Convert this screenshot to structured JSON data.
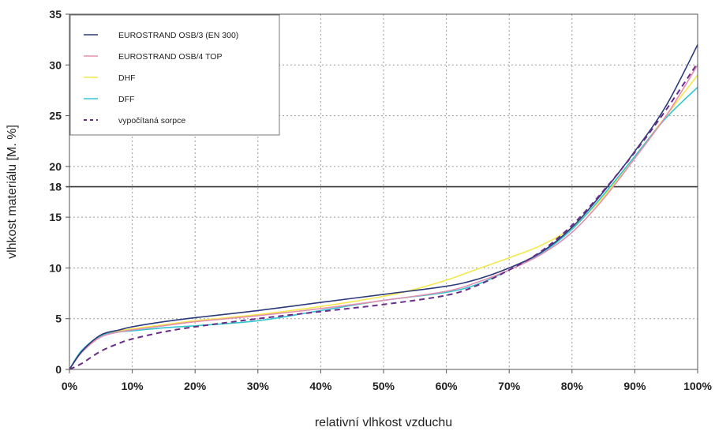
{
  "chart_data": {
    "type": "line",
    "xlabel": "relativní vlhkost vzduchu",
    "ylabel": "vlhkost materiálu [M. %]",
    "xlim": [
      0,
      100
    ],
    "ylim": [
      0,
      35
    ],
    "x_ticks": [
      0,
      10,
      20,
      30,
      40,
      50,
      60,
      70,
      80,
      90,
      100
    ],
    "x_tick_labels": [
      "0%",
      "10%",
      "20%",
      "30%",
      "40%",
      "50%",
      "60%",
      "70%",
      "80%",
      "90%",
      "100%"
    ],
    "y_ticks": [
      0,
      5,
      10,
      15,
      18,
      20,
      25,
      30,
      35
    ],
    "y_tick_labels": [
      "0",
      "5",
      "10",
      "15",
      "18",
      "20",
      "25",
      "30",
      "35"
    ],
    "grid": true,
    "legend_position": "top-left",
    "reference_line": {
      "y": 18,
      "color": "#333333"
    },
    "series": [
      {
        "name": "EUROSTRAND OSB/3 (EN 300)",
        "color": "#2b3a7a",
        "style": "solid",
        "x": [
          0,
          2,
          5,
          8,
          10,
          15,
          20,
          30,
          40,
          50,
          60,
          65,
          70,
          75,
          80,
          85,
          90,
          95,
          100
        ],
        "y": [
          0,
          1.8,
          3.4,
          3.9,
          4.2,
          4.7,
          5.1,
          5.8,
          6.6,
          7.4,
          8.2,
          8.9,
          10,
          11.5,
          14,
          17.5,
          21.5,
          26,
          32
        ]
      },
      {
        "name": "EUROSTRAND OSB/4 TOP",
        "color": "#e58fb0",
        "style": "solid",
        "x": [
          0,
          2,
          5,
          8,
          10,
          15,
          20,
          30,
          40,
          50,
          60,
          65,
          70,
          75,
          80,
          85,
          90,
          95,
          100
        ],
        "y": [
          0,
          1.7,
          3.2,
          3.7,
          3.9,
          4.3,
          4.7,
          5.3,
          6.0,
          6.8,
          7.7,
          8.6,
          9.8,
          11.3,
          13.5,
          16.8,
          20.8,
          25.0,
          30.0
        ]
      },
      {
        "name": "DHF",
        "color": "#f4e84a",
        "style": "solid",
        "x": [
          0,
          2,
          5,
          8,
          10,
          15,
          20,
          30,
          40,
          50,
          55,
          60,
          65,
          70,
          75,
          80,
          85,
          90,
          95,
          100
        ],
        "y": [
          0,
          1.8,
          3.3,
          3.8,
          4.0,
          4.4,
          4.8,
          5.4,
          6.2,
          7.2,
          7.9,
          8.8,
          9.9,
          11.0,
          12.2,
          14.0,
          17.0,
          21.0,
          25.0,
          29.0
        ]
      },
      {
        "name": "DFF",
        "color": "#33c5d0",
        "style": "solid",
        "x": [
          0,
          2,
          5,
          8,
          10,
          15,
          20,
          30,
          40,
          50,
          60,
          65,
          70,
          75,
          80,
          85,
          90,
          95,
          100
        ],
        "y": [
          0,
          1.9,
          3.3,
          3.7,
          3.8,
          4.1,
          4.3,
          4.8,
          5.8,
          6.8,
          7.6,
          8.4,
          9.8,
          11.4,
          13.8,
          17.2,
          21.0,
          24.8,
          27.8
        ]
      },
      {
        "name": "vypočítaná sorpce",
        "color": "#6a2c8a",
        "style": "dashed",
        "x": [
          0,
          2,
          5,
          8,
          10,
          15,
          20,
          30,
          40,
          50,
          60,
          65,
          70,
          75,
          80,
          85,
          90,
          95,
          100
        ],
        "y": [
          0,
          0.6,
          1.8,
          2.6,
          3.0,
          3.7,
          4.2,
          5.0,
          5.7,
          6.4,
          7.3,
          8.3,
          9.8,
          11.6,
          14.2,
          17.6,
          21.4,
          25.6,
          30.2
        ]
      }
    ]
  }
}
